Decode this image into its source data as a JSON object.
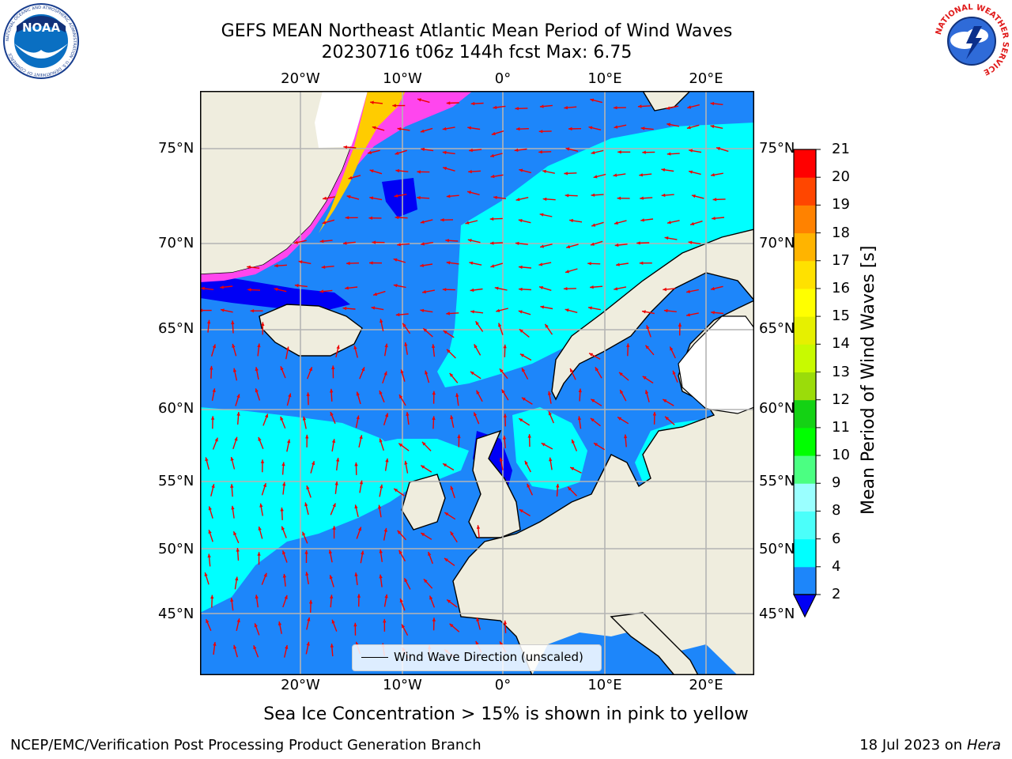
{
  "header": {
    "title_line1": "GEFS MEAN Northeast Atlantic Mean Period of Wind Waves",
    "title_line2": "20230716 t06z 144h fcst   Max: 6.75"
  },
  "logos": {
    "left": {
      "name": "NOAA",
      "ring_text": "NATIONAL OCEANIC AND ATMOSPHERIC ADMINISTRATION · U.S. DEPARTMENT OF COMMERCE",
      "center_text": "NOAA"
    },
    "right": {
      "name": "National Weather Service",
      "ring_text": "NATIONAL WEATHER SERVICE"
    }
  },
  "map": {
    "lon_labels": [
      "20°W",
      "10°W",
      "0°",
      "10°E",
      "20°E"
    ],
    "lat_labels": [
      "75°N",
      "70°N",
      "65°N",
      "60°N",
      "55°N",
      "50°N",
      "45°N"
    ],
    "legend_label": "Wind Wave Direction (unscaled)",
    "colors": {
      "land": "#efedde",
      "ice_white": "#ffffff",
      "period_2_4": "#1d86fa",
      "period_4_6": "#00ffff",
      "period_below_2": "#0000f5",
      "ice_pink": "#ff46ee",
      "ice_yellow": "#ffee00",
      "arrow": "#ee0000",
      "grid": "#b4b4b4"
    }
  },
  "colorbar": {
    "title": "Mean Period of Wind Waves [s]",
    "ticks": [
      "2",
      "4",
      "6",
      "8",
      "9",
      "10",
      "11",
      "12",
      "13",
      "14",
      "15",
      "16",
      "17",
      "18",
      "19",
      "20",
      "21"
    ],
    "colors": [
      "#1d86fa",
      "#00ffff",
      "#4bfffa",
      "#9affff",
      "#4bff82",
      "#00ff00",
      "#14d214",
      "#9bdc0a",
      "#c8fa00",
      "#e6f000",
      "#ffff00",
      "#ffe100",
      "#ffb400",
      "#ff8200",
      "#ff4600",
      "#ff0000"
    ],
    "extend_color": "#0000f5"
  },
  "notes": {
    "ice": "Sea Ice Concentration > 15% is shown in pink to yellow"
  },
  "footer": {
    "left": "NCEP/EMC/Verification Post Processing Product Generation Branch",
    "right_date": "18 Jul 2023 on ",
    "right_host": "Hera"
  }
}
